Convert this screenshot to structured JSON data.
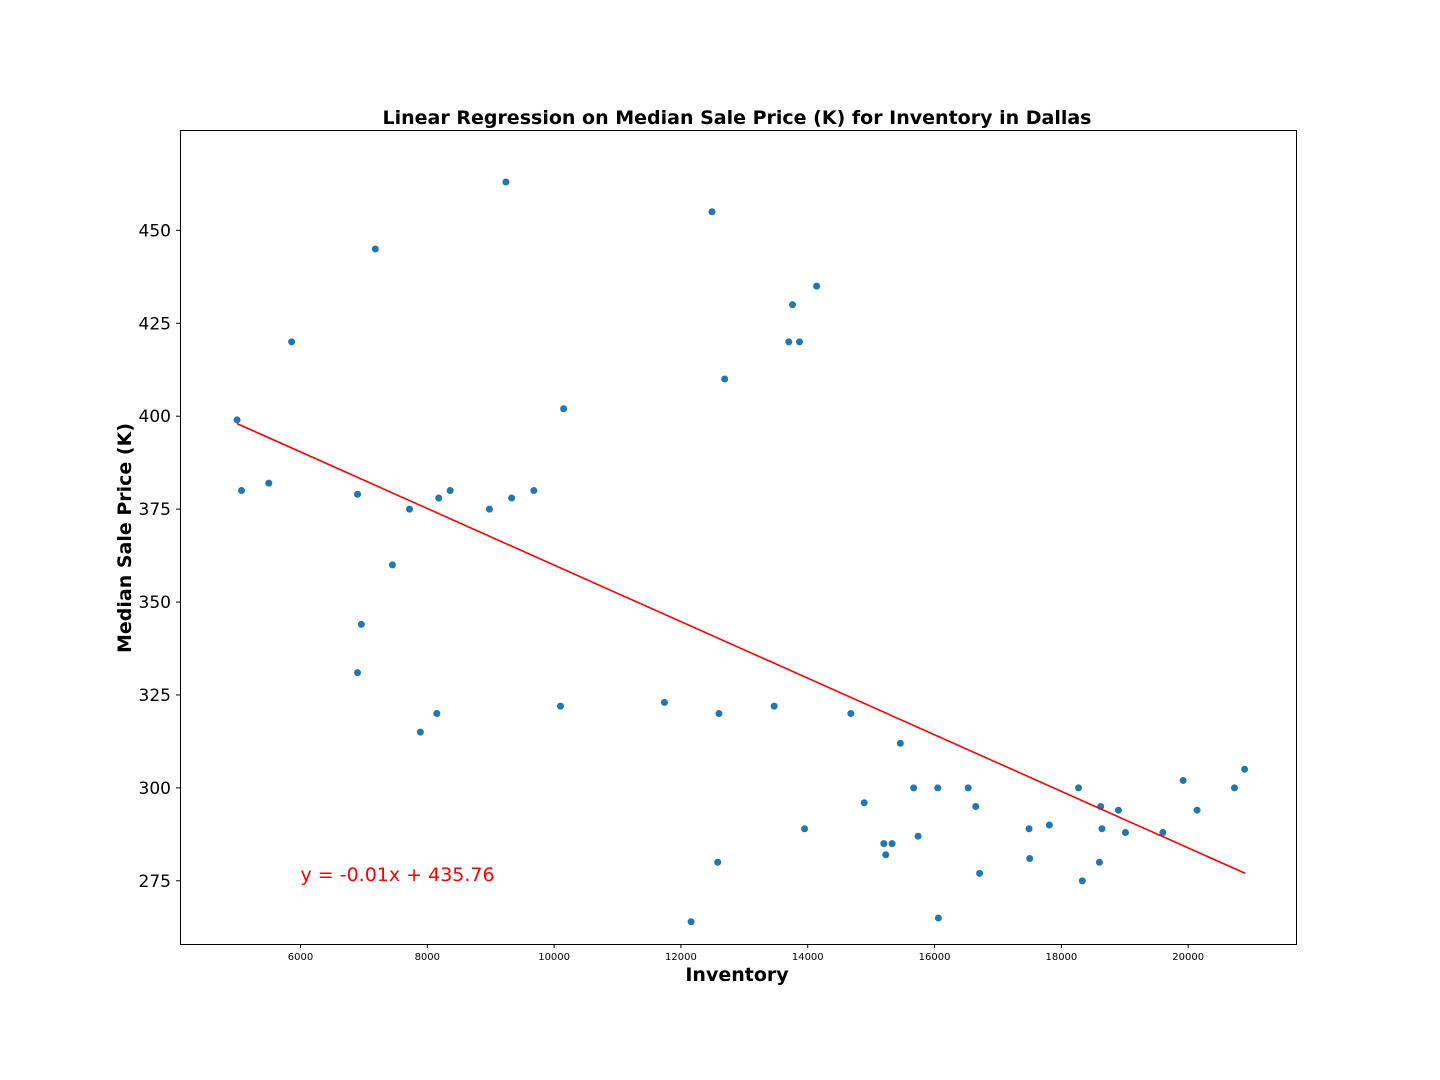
{
  "chart_data": {
    "type": "scatter",
    "title": "Linear Regression on Median Sale Price (K) for Inventory in Dallas",
    "xlabel": "Inventory",
    "ylabel": "Median Sale Price (K)",
    "xlim": [
      4100,
      21700
    ],
    "ylim": [
      258,
      477
    ],
    "xticks": [
      6000,
      8000,
      10000,
      12000,
      14000,
      16000,
      18000,
      20000
    ],
    "xtick_labels": [
      "6000",
      "8000",
      "10000",
      "12000",
      "14000",
      "16000",
      "18000",
      "20000"
    ],
    "yticks": [
      275,
      300,
      325,
      350,
      375,
      400,
      425,
      450
    ],
    "ytick_labels": [
      "275",
      "300",
      "325",
      "350",
      "375",
      "400",
      "425",
      "450"
    ],
    "grid": false,
    "point_color": "#1f77b4",
    "line_color": "#ff0000",
    "annotation": {
      "text": "y = -0.01x + 435.76",
      "x": 6000,
      "y": 275,
      "color": "#ff0000"
    },
    "regression_line": {
      "x": [
        5000,
        20900
      ],
      "y": [
        398,
        277
      ]
    },
    "points": [
      [
        5000,
        399
      ],
      [
        5070,
        380
      ],
      [
        5500,
        382
      ],
      [
        5860,
        420
      ],
      [
        6900,
        379
      ],
      [
        6900,
        331
      ],
      [
        6960,
        344
      ],
      [
        7180,
        445
      ],
      [
        7450,
        360
      ],
      [
        7720,
        375
      ],
      [
        7890,
        315
      ],
      [
        8150,
        320
      ],
      [
        8180,
        378
      ],
      [
        8360,
        380
      ],
      [
        8980,
        375
      ],
      [
        9240,
        463
      ],
      [
        9330,
        378
      ],
      [
        9680,
        380
      ],
      [
        10100,
        322
      ],
      [
        10150,
        402
      ],
      [
        11740,
        323
      ],
      [
        12160,
        264
      ],
      [
        12490,
        455
      ],
      [
        12580,
        280
      ],
      [
        12600,
        320
      ],
      [
        12690,
        410
      ],
      [
        13470,
        322
      ],
      [
        13700,
        420
      ],
      [
        13760,
        430
      ],
      [
        13870,
        420
      ],
      [
        13950,
        289
      ],
      [
        14140,
        435
      ],
      [
        14680,
        320
      ],
      [
        14890,
        296
      ],
      [
        15200,
        285
      ],
      [
        15230,
        282
      ],
      [
        15330,
        285
      ],
      [
        15460,
        312
      ],
      [
        15670,
        300
      ],
      [
        15740,
        287
      ],
      [
        16050,
        300
      ],
      [
        16060,
        265
      ],
      [
        16530,
        300
      ],
      [
        16650,
        295
      ],
      [
        16710,
        277
      ],
      [
        17490,
        289
      ],
      [
        17500,
        281
      ],
      [
        17810,
        290
      ],
      [
        18270,
        300
      ],
      [
        18330,
        275
      ],
      [
        18600,
        280
      ],
      [
        18620,
        295
      ],
      [
        18640,
        289
      ],
      [
        18900,
        294
      ],
      [
        19010,
        288
      ],
      [
        19600,
        288
      ],
      [
        19920,
        302
      ],
      [
        20140,
        294
      ],
      [
        20730,
        300
      ],
      [
        20890,
        305
      ]
    ]
  }
}
